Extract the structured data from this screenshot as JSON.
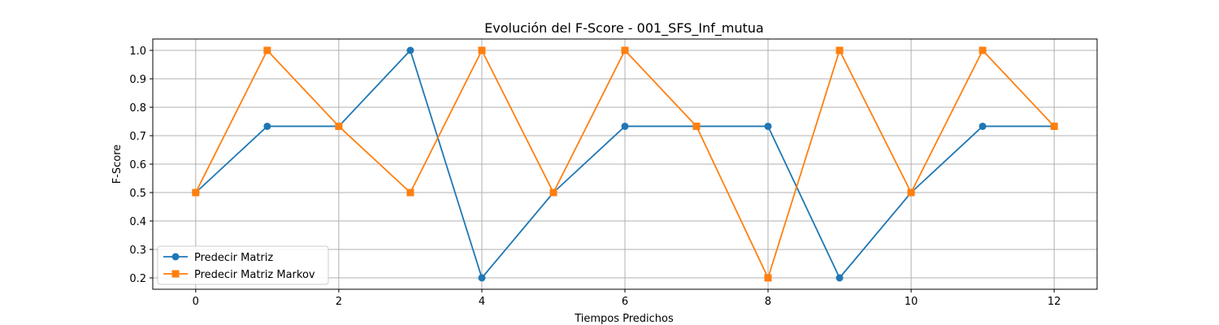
{
  "chart_data": {
    "type": "line",
    "title": "Evolución del F-Score - 001_SFS_Inf_mutua",
    "xlabel": "Tiempos Predichos",
    "ylabel": "F-Score",
    "x": [
      0,
      1,
      2,
      3,
      4,
      5,
      6,
      7,
      8,
      9,
      10,
      11,
      12
    ],
    "xlim": [
      -0.6,
      12.6
    ],
    "ylim": [
      0.16,
      1.04
    ],
    "xticks": [
      0,
      2,
      4,
      6,
      8,
      10,
      12
    ],
    "yticks": [
      0.2,
      0.3,
      0.4,
      0.5,
      0.6,
      0.7,
      0.8,
      0.9,
      1.0
    ],
    "grid": true,
    "legend_position": "lower-left",
    "series": [
      {
        "name": "Predecir Matriz",
        "color": "#1f77b4",
        "marker": "circle",
        "values": [
          0.5,
          0.733,
          0.733,
          1.0,
          0.2,
          0.5,
          0.733,
          0.733,
          0.733,
          0.2,
          0.5,
          0.733,
          0.733
        ]
      },
      {
        "name": "Predecir Matriz Markov",
        "color": "#ff7f0e",
        "marker": "square",
        "values": [
          0.5,
          1.0,
          0.733,
          0.5,
          1.0,
          0.5,
          1.0,
          0.733,
          0.2,
          1.0,
          0.5,
          1.0,
          0.733
        ]
      }
    ]
  }
}
